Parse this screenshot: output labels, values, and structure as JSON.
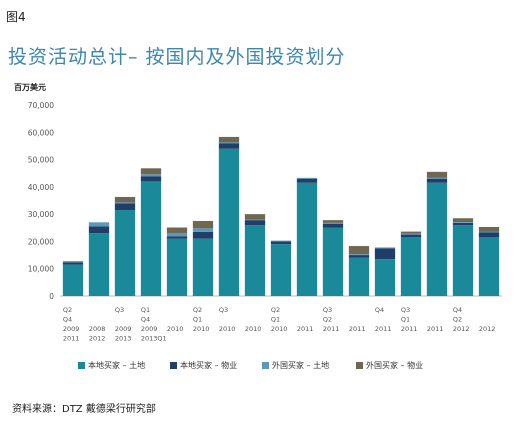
{
  "figure_label": "图4",
  "chart_data": {
    "type": "bar",
    "stacked": true,
    "title": "投资活动总计– 按国内及外国投资划分",
    "ylabel": "百万美元",
    "ylim": [
      0,
      70000
    ],
    "yticks": [
      0,
      10000,
      20000,
      30000,
      40000,
      50000,
      60000,
      70000
    ],
    "grid": false,
    "legend_position": "bottom",
    "x_tick_lines": [
      [
        "Q2",
        "Q4",
        "2009",
        "2011"
      ],
      [
        "",
        "",
        "2008",
        "2012"
      ],
      [
        "Q3",
        "",
        "2009",
        "2013"
      ],
      [
        "Q1",
        "Q4",
        "2009",
        "2013Q1"
      ],
      [
        "",
        "",
        "2010",
        ""
      ],
      [
        "Q2",
        "Q1",
        "2010",
        ""
      ],
      [
        "Q3",
        "",
        "2010",
        ""
      ],
      [
        "",
        "",
        "2010",
        ""
      ],
      [
        "Q2",
        "Q1",
        "2010",
        ""
      ],
      [
        "",
        "",
        "2011",
        ""
      ],
      [
        "Q3",
        "Q2",
        "2011",
        ""
      ],
      [
        "",
        "",
        "2011",
        ""
      ],
      [
        "Q4",
        "",
        "2011",
        ""
      ],
      [
        "Q3",
        "Q1",
        "2011",
        ""
      ],
      [
        "",
        "",
        "2011",
        ""
      ],
      [
        "Q4",
        "Q2",
        "2012",
        ""
      ],
      [
        "",
        "",
        "2012",
        ""
      ]
    ],
    "series": [
      {
        "name": "本地买家 – 土地",
        "color": "#1a8a9a",
        "values": [
          11500,
          23000,
          31500,
          42000,
          21000,
          21000,
          54000,
          26000,
          19000,
          41500,
          25000,
          14000,
          13500,
          21500,
          41500,
          26000,
          21500
        ]
      },
      {
        "name": "本地买家 – 物业",
        "color": "#1f3f68",
        "values": [
          800,
          2500,
          2500,
          1800,
          800,
          2500,
          2000,
          1800,
          1000,
          1500,
          1500,
          1000,
          4000,
          1000,
          1500,
          800,
          1800
        ]
      },
      {
        "name": "外国买家 – 土地",
        "color": "#5a9ab8",
        "values": [
          500,
          1500,
          300,
          800,
          1300,
          1300,
          300,
          200,
          300,
          300,
          300,
          300,
          300,
          300,
          300,
          300,
          200
        ]
      },
      {
        "name": "外国买家 – 物业",
        "color": "#6f6752",
        "values": [
          0,
          0,
          2000,
          2200,
          2000,
          2700,
          2000,
          2000,
          0,
          0,
          1000,
          3000,
          0,
          800,
          2200,
          1400,
          1800
        ]
      }
    ]
  },
  "source": "资料来源：DTZ 戴德梁行研究部"
}
